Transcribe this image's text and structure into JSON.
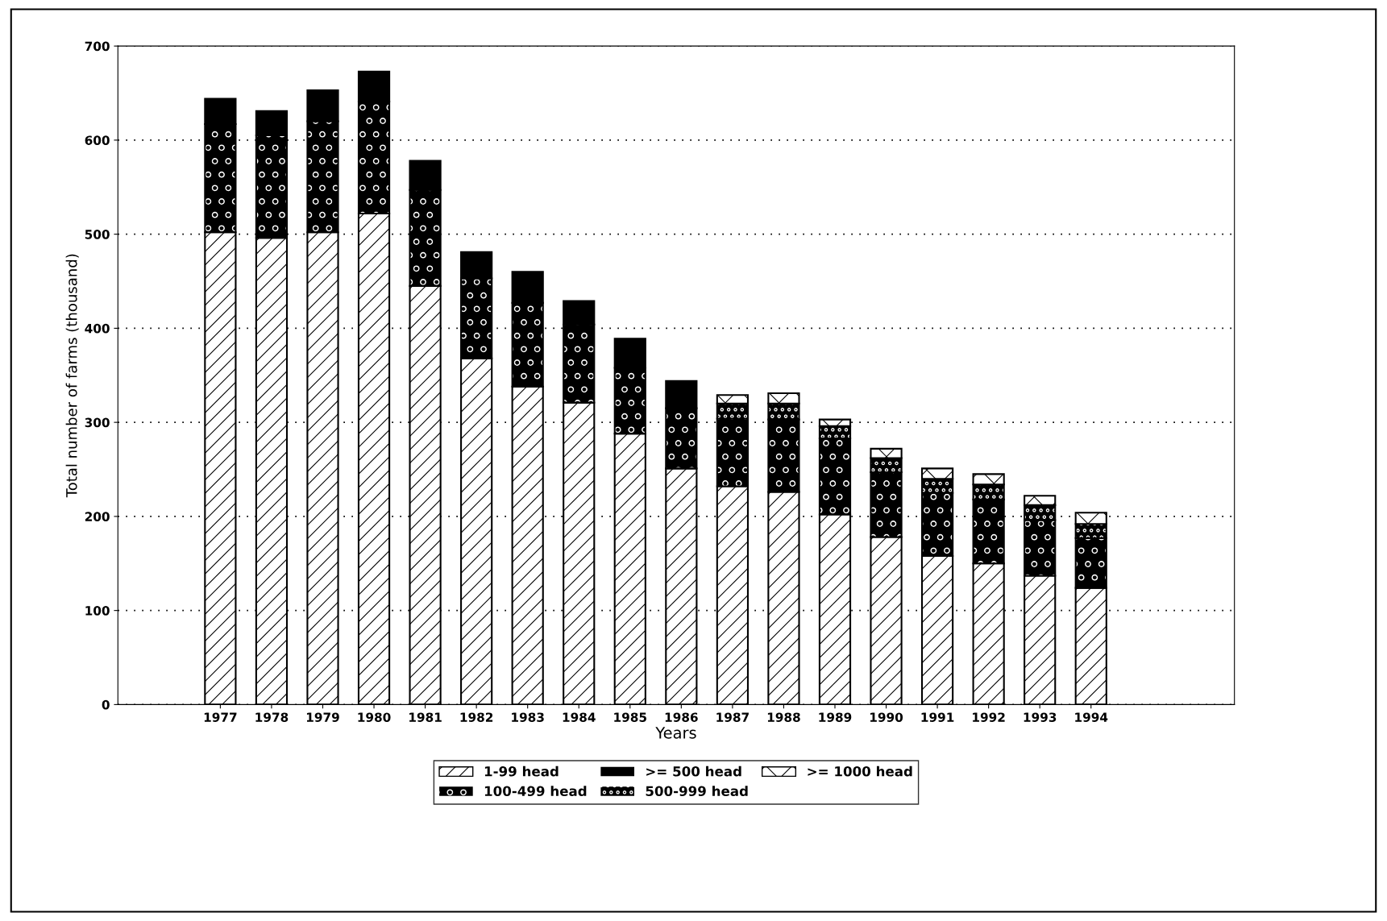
{
  "chart_data": {
    "type": "bar",
    "stacked": true,
    "xlabel": "Years",
    "ylabel": "Total number of farms (thousand)",
    "categories": [
      "1977",
      "1978",
      "1979",
      "1980",
      "1981",
      "1982",
      "1983",
      "1984",
      "1985",
      "1986",
      "1987",
      "1988",
      "1989",
      "1990",
      "1991",
      "1992",
      "1993",
      "1994"
    ],
    "series": [
      {
        "name": "1-99 head",
        "color": "#ffffff",
        "values": [
          502,
          496,
          502,
          522,
          445,
          368,
          338,
          321,
          288,
          251,
          232,
          226,
          202,
          178,
          158,
          150,
          137,
          124
        ]
      },
      {
        "name": "100-499 head",
        "color": "#000000",
        "values": [
          115,
          109,
          118,
          119,
          102,
          85,
          89,
          83,
          70,
          64,
          72,
          77,
          81,
          69,
          67,
          68,
          59,
          53
        ]
      },
      {
        "name": ">= 500 head",
        "color": "#000000",
        "values": [
          27,
          26,
          33,
          32,
          31,
          28,
          33,
          25,
          31,
          29,
          null,
          null,
          null,
          null,
          null,
          null,
          null,
          null
        ]
      },
      {
        "name": "500-999 head",
        "color": "#000000",
        "values": [
          null,
          null,
          null,
          null,
          null,
          null,
          null,
          null,
          null,
          null,
          16,
          17,
          13,
          15,
          15,
          16,
          16,
          15
        ]
      },
      {
        "name": ">= 1000 head",
        "color": "#ffffff",
        "values": [
          null,
          null,
          null,
          null,
          null,
          null,
          null,
          null,
          null,
          null,
          9,
          11,
          7,
          10,
          11,
          11,
          10,
          12
        ]
      }
    ],
    "ylim": [
      0,
      700
    ],
    "yticks": [
      0,
      100,
      200,
      300,
      400,
      500,
      600,
      700
    ],
    "grid": "y",
    "legend": "bottom"
  }
}
